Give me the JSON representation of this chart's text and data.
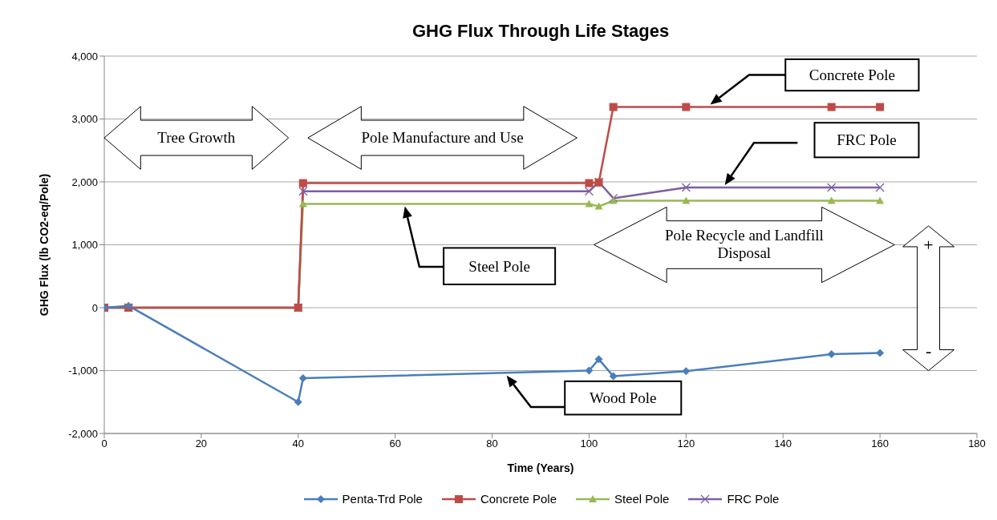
{
  "chart_data": {
    "type": "line",
    "title": "GHG Flux Through Life Stages",
    "xlabel": "Time (Years)",
    "ylabel": "GHG Flux (lb CO2-eq/Pole)",
    "x": [
      0,
      5,
      40,
      41,
      100,
      102,
      105,
      120,
      150,
      160
    ],
    "series": [
      {
        "name": "Penta-Trd Pole",
        "color": "#4a7ebb",
        "marker": "diamond",
        "values": [
          0,
          30,
          -1500,
          -1120,
          -1000,
          -820,
          -1090,
          -1010,
          -740,
          -720
        ]
      },
      {
        "name": "Concrete Pole",
        "color": "#be4b48",
        "marker": "square",
        "values": [
          0,
          0,
          0,
          1980,
          1980,
          1990,
          3190,
          3190,
          3190,
          3190
        ]
      },
      {
        "name": "Steel Pole",
        "color": "#98b954",
        "marker": "triangle",
        "values": [
          0,
          0,
          0,
          1650,
          1650,
          1610,
          1700,
          1700,
          1700,
          1700
        ]
      },
      {
        "name": "FRC Pole",
        "color": "#7d60a0",
        "marker": "cross",
        "values": [
          0,
          0,
          0,
          1850,
          1850,
          2000,
          1740,
          1910,
          1910,
          1910
        ]
      }
    ],
    "xlim": [
      0,
      180
    ],
    "xticks": [
      0,
      20,
      40,
      60,
      80,
      100,
      120,
      140,
      160,
      180
    ],
    "ylim": [
      -2000,
      4000
    ],
    "yticks": [
      {
        "value": -2000,
        "label": "-2,000"
      },
      {
        "value": -1000,
        "label": "-1,000"
      },
      0,
      {
        "value": 1000,
        "label": "1,000"
      },
      {
        "value": 2000,
        "label": "2,000"
      },
      {
        "value": 3000,
        "label": "3,000"
      },
      {
        "value": 4000,
        "label": "4,000"
      }
    ],
    "grid": "y",
    "legend": "bottom",
    "annotations": [
      "Tree Growth",
      "Pole Manufacture and Use",
      "Pole Recycle and Landfill Disposal",
      "Concrete Pole",
      "FRC Pole",
      "Steel Pole",
      "Wood Pole",
      "+",
      "-"
    ]
  }
}
